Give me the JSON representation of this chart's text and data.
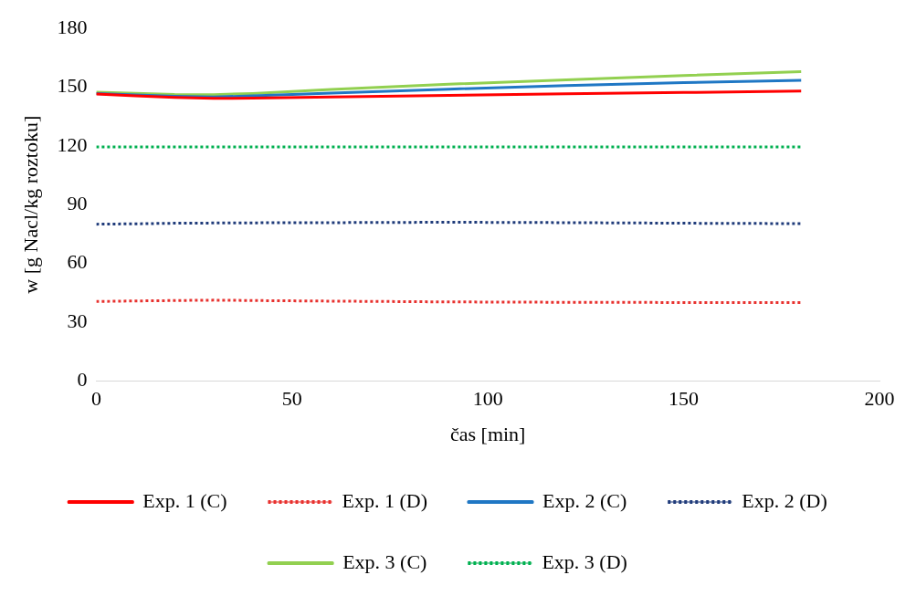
{
  "chart_data": {
    "type": "line",
    "xlabel": "čas [min]",
    "ylabel": "w [g Nacl/kg roztoku]",
    "x": [
      0,
      10,
      20,
      30,
      40,
      60,
      90,
      120,
      150,
      180
    ],
    "xlim": [
      0,
      200
    ],
    "xticks": [
      0,
      50,
      100,
      150,
      200
    ],
    "ylim": [
      0,
      180
    ],
    "yticks": [
      0,
      30,
      60,
      90,
      120,
      150,
      180
    ],
    "grid": false,
    "legend": "bottom",
    "marker": "none",
    "series": [
      {
        "name": "Exp. 1 (C)",
        "color": "#ff0000",
        "line_style": "solid",
        "values": [
          146.5,
          145.6,
          144.8,
          144.3,
          144.4,
          145,
          145.8,
          146.6,
          147.3,
          148
        ]
      },
      {
        "name": "Exp. 1 (D)",
        "color": "#e8312e",
        "line_style": "dotted",
        "values": [
          40.5,
          40.8,
          41,
          41.2,
          41,
          40.7,
          40.3,
          40.1,
          40,
          40
        ]
      },
      {
        "name": "Exp. 2 (C)",
        "color": "#1f77c4",
        "line_style": "solid",
        "values": [
          146.8,
          146,
          145.3,
          145,
          145.6,
          147,
          149,
          150.8,
          152.3,
          153.5
        ]
      },
      {
        "name": "Exp. 2 (D)",
        "color": "#1f3b7a",
        "line_style": "dotted",
        "values": [
          80,
          80.2,
          80.5,
          80.6,
          80.7,
          80.8,
          81,
          80.8,
          80.5,
          80.3
        ]
      },
      {
        "name": "Exp. 3 (C)",
        "color": "#92d050",
        "line_style": "solid",
        "values": [
          147.5,
          146.9,
          146.3,
          146.2,
          146.8,
          148.8,
          151.5,
          153.8,
          156,
          158
        ]
      },
      {
        "name": "Exp. 3 (D)",
        "color": "#00b050",
        "line_style": "dotted",
        "values": [
          119.5,
          119.5,
          119.5,
          119.5,
          119.5,
          119.5,
          119.5,
          119.5,
          119.5,
          119.5
        ]
      }
    ]
  }
}
